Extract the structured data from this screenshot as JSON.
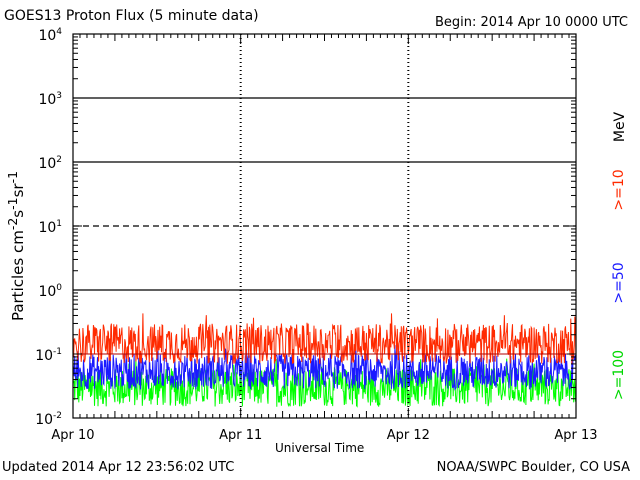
{
  "header": {
    "title": "GOES13 Proton Flux (5 minute data)",
    "begin": "Begin: 2014 Apr 10 0000 UTC"
  },
  "footer": {
    "updated": "Updated 2014 Apr 12 23:56:02 UTC",
    "credit": "NOAA/SWPC Boulder, CO USA"
  },
  "chart_data": {
    "type": "line",
    "xlabel": "Universal Time",
    "ylabel_html": "Particles cm<sup>-2</sup>s<sup>-1</sup>sr<sup>-1</sup>",
    "ylabel": "Particles cm-2s-1sr-1",
    "yscale": "log",
    "ylim": [
      0.01,
      10000
    ],
    "xlim": [
      "2014-04-10",
      "2014-04-13"
    ],
    "x_ticks": [
      "Apr 10",
      "Apr 11",
      "Apr 12",
      "Apr 13"
    ],
    "y_ticks": [
      {
        "base": "10",
        "exp": "-2"
      },
      {
        "base": "10",
        "exp": "-1"
      },
      {
        "base": "10",
        "exp": "0"
      },
      {
        "base": "10",
        "exp": "1"
      },
      {
        "base": "10",
        "exp": "2"
      },
      {
        "base": "10",
        "exp": "3"
      },
      {
        "base": "10",
        "exp": "4"
      }
    ],
    "unit_label": "MeV",
    "series": [
      {
        "name": ">=10",
        "color": "#ff2a00",
        "typical_low": 0.07,
        "typical_high": 0.3
      },
      {
        "name": ">=50",
        "color": "#1a1aff",
        "typical_low": 0.028,
        "typical_high": 0.1
      },
      {
        "name": ">=100",
        "color": "#00ff00",
        "typical_low": 0.015,
        "typical_high": 0.06
      }
    ],
    "threshold_lines": [
      {
        "value": 10,
        "style": "dashed"
      }
    ],
    "grid": "solid lines at 10^0, 10^2, 10^3; dashed at 10^1; dashed vertical day markers"
  }
}
